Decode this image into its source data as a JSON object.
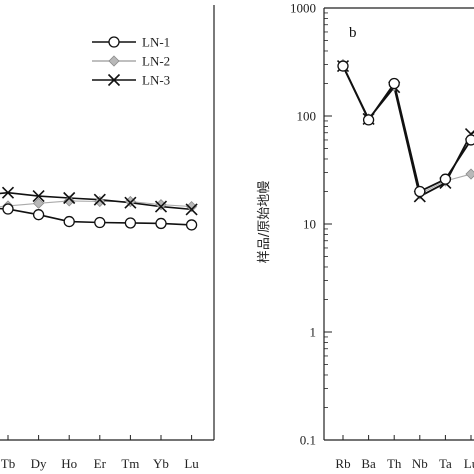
{
  "chart_data": [
    {
      "type": "line",
      "panel": "a",
      "categories": [
        "Tb",
        "Dy",
        "Ho",
        "Er",
        "Tm",
        "Yb",
        "Lu"
      ],
      "y_scale": "log",
      "ylim": [
        0.1,
        1000
      ],
      "legend_placement": "top-right",
      "series": [
        {
          "name": "LN-1",
          "marker": "open-circle",
          "color": "#111111",
          "values": [
            13.3,
            11.8,
            10.2,
            10.0,
            9.9,
            9.8,
            9.5
          ]
        },
        {
          "name": "LN-2",
          "marker": "gray-diamond",
          "color": "#aaaaaa",
          "values": [
            14.2,
            15.0,
            15.8,
            15.6,
            15.6,
            14.6,
            14.0
          ]
        },
        {
          "name": "LN-3",
          "marker": "x",
          "color": "#111111",
          "values": [
            18.8,
            17.5,
            16.8,
            16.2,
            15.2,
            14.0,
            13.2
          ]
        }
      ]
    },
    {
      "type": "line",
      "panel": "b",
      "panel_letter": "b",
      "ylabel": "样品/原始地幔",
      "categories": [
        "Rb",
        "Ba",
        "Th",
        "Nb",
        "Ta",
        "Lu"
      ],
      "y_scale": "log",
      "ylim": [
        0.1,
        1000
      ],
      "yticks": [
        "1000",
        "100",
        "10",
        "1",
        "0.1"
      ],
      "series": [
        {
          "name": "LN-1",
          "marker": "open-circle",
          "color": "#111111",
          "values": [
            290,
            92,
            200,
            20,
            26,
            60
          ]
        },
        {
          "name": "LN-2",
          "marker": "gray-diamond",
          "color": "#aaaaaa",
          "values": [
            300,
            94,
            190,
            19,
            25,
            29
          ]
        },
        {
          "name": "LN-3",
          "marker": "x",
          "color": "#111111",
          "values": [
            290,
            94,
            185,
            18,
            24,
            68
          ]
        }
      ]
    }
  ]
}
